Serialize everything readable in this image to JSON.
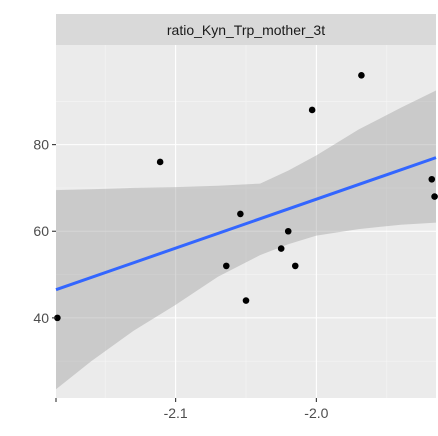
{
  "chart_data": {
    "type": "scatter",
    "facet_label": "ratio_Kyn_Trp_mother_3t",
    "xlabel": "",
    "ylabel": "",
    "xlim": [
      -2.185,
      -1.915
    ],
    "ylim": [
      21.5,
      103
    ],
    "x_ticks": [
      -2.2,
      -2.1,
      -2.0
    ],
    "x_tick_labels": [
      "",
      "-2.1",
      "-2.0"
    ],
    "y_ticks": [
      40,
      60,
      80
    ],
    "y_tick_labels": [
      "40",
      "60",
      "80"
    ],
    "grid": true,
    "points": [
      {
        "x": -2.184,
        "y": 40
      },
      {
        "x": -2.111,
        "y": 76
      },
      {
        "x": -2.064,
        "y": 52
      },
      {
        "x": -2.054,
        "y": 64
      },
      {
        "x": -2.05,
        "y": 44
      },
      {
        "x": -2.025,
        "y": 56
      },
      {
        "x": -2.02,
        "y": 60
      },
      {
        "x": -2.015,
        "y": 52
      },
      {
        "x": -2.003,
        "y": 88
      },
      {
        "x": -1.968,
        "y": 96
      },
      {
        "x": -1.918,
        "y": 72
      },
      {
        "x": -1.916,
        "y": 68
      }
    ],
    "fit_line": {
      "x": [
        -2.185,
        -1.915
      ],
      "y": [
        46.5,
        77
      ]
    },
    "confidence_band": {
      "x": [
        -2.185,
        -2.16,
        -2.13,
        -2.1,
        -2.07,
        -2.04,
        -2.02,
        -2.0,
        -1.97,
        -1.94,
        -1.915
      ],
      "lower": [
        23.5,
        30,
        37,
        43,
        49.5,
        54.5,
        57,
        59,
        60.5,
        61.5,
        62
      ],
      "upper": [
        69.5,
        69.7,
        70,
        70.2,
        70.5,
        71,
        74,
        77.5,
        83.5,
        88.5,
        92.5
      ]
    },
    "colors": {
      "panel_bg": "#ebebeb",
      "strip_bg": "#d9d9d9",
      "grid_major": "#ffffff",
      "grid_minor": "#f5f5f5",
      "band": "#999999",
      "fit_line": "#3366ff",
      "points": "#000000",
      "tick_text": "#4d4d4d",
      "tick_mark": "#333333"
    }
  }
}
